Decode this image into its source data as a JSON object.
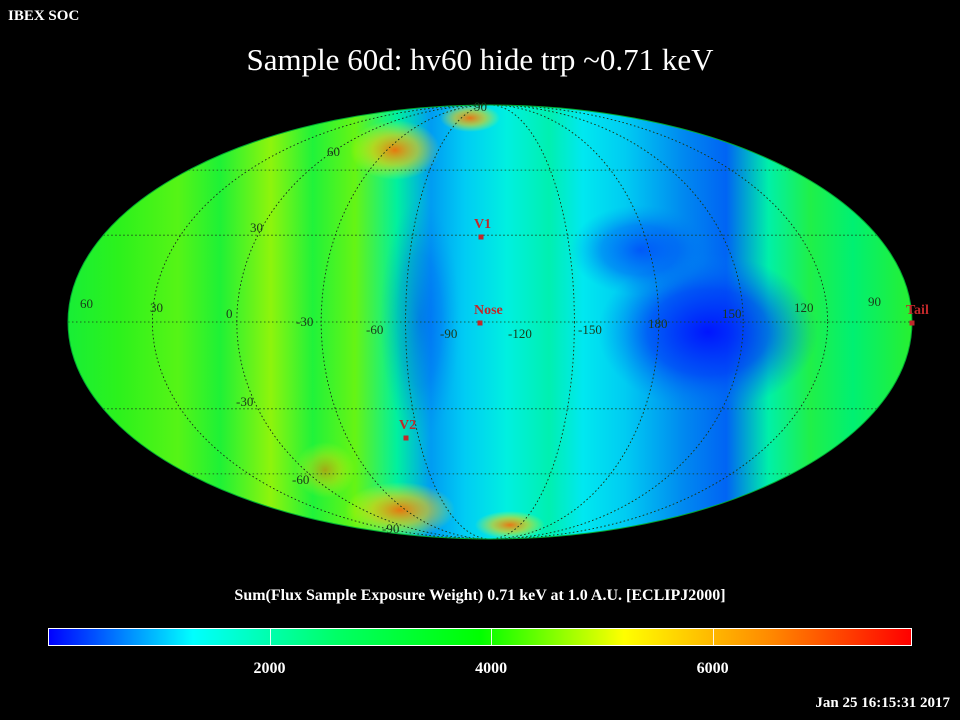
{
  "header": {
    "corner": "IBEX SOC",
    "title": "Sample 60d: hv60 hide trp ~0.71 keV"
  },
  "map": {
    "projection": "Mollweide-like ellipse",
    "lon_labels": [
      {
        "text": "60"
      },
      {
        "text": "30"
      },
      {
        "text": "0"
      },
      {
        "text": "-30"
      },
      {
        "text": "-60"
      },
      {
        "text": "-90"
      },
      {
        "text": "-120"
      },
      {
        "text": "-150"
      },
      {
        "text": "180"
      },
      {
        "text": "150"
      },
      {
        "text": "120"
      },
      {
        "text": "90"
      }
    ],
    "lat_labels": [
      {
        "text": "90"
      },
      {
        "text": "60"
      },
      {
        "text": "30"
      },
      {
        "text": "-30"
      },
      {
        "text": "-60"
      },
      {
        "text": "-90"
      }
    ],
    "markers": [
      {
        "label": "V1"
      },
      {
        "label": "Nose"
      },
      {
        "label": "V2"
      },
      {
        "label": "Tail"
      }
    ],
    "marker_color": "#c0282a"
  },
  "colorbar": {
    "title": "Sum(Flux Sample Exposure Weight)  0.71 keV at 1.0 A.U. [ECLIPJ2000]",
    "min": 0,
    "max": 7800,
    "ticks": [
      {
        "value": 2000,
        "label": "2000"
      },
      {
        "value": 4000,
        "label": "4000"
      },
      {
        "value": 6000,
        "label": "6000"
      }
    ],
    "colors": [
      "#0000ff",
      "#00ffff",
      "#00ff66",
      "#00ff00",
      "#ffff00",
      "#ff8c00",
      "#ff0000"
    ]
  },
  "footer": {
    "timestamp": "Jan 25 16:15:31 2017"
  }
}
